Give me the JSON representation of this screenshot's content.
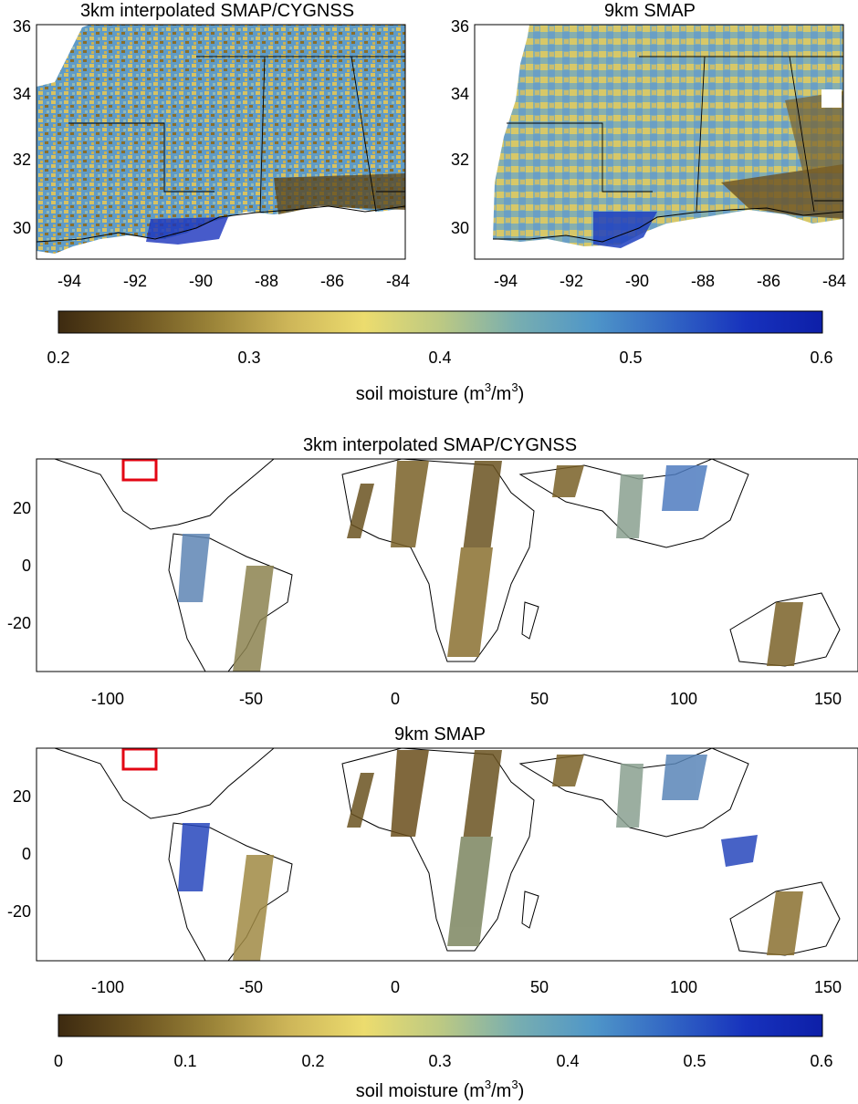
{
  "colors": {
    "colormap": [
      "#3d2a10",
      "#6b5320",
      "#9a8338",
      "#cdb558",
      "#ecdc6e",
      "#bcc983",
      "#78aeb0",
      "#4f96c8",
      "#3266c4",
      "#1732bd",
      "#0d1fa8"
    ],
    "land_bg": "#ffffff",
    "ocean": "#ffffff",
    "inset_box": "#e30613",
    "coast": "#000000"
  },
  "maps": {
    "regional_left": {
      "title": "3km interpolated SMAP/CYGNSS",
      "x_ticks": [
        "-94",
        "-92",
        "-90",
        "-88",
        "-86",
        "-84"
      ],
      "y_ticks": [
        "36",
        "34",
        "32",
        "30"
      ]
    },
    "regional_right": {
      "title": "9km SMAP",
      "x_ticks": [
        "-94",
        "-92",
        "-90",
        "-88",
        "-86",
        "-84"
      ],
      "y_ticks": [
        "36",
        "34",
        "32",
        "30"
      ]
    },
    "global_top": {
      "title": "3km interpolated SMAP/CYGNSS",
      "x_ticks": [
        "-100",
        "-50",
        "0",
        "50",
        "100",
        "150"
      ],
      "y_ticks": [
        "20",
        "0",
        "-20"
      ]
    },
    "global_bottom": {
      "title": "9km SMAP",
      "x_ticks": [
        "-100",
        "-50",
        "0",
        "50",
        "100",
        "150"
      ],
      "y_ticks": [
        "20",
        "0",
        "-20"
      ]
    }
  },
  "colorbars": {
    "top": {
      "ticks": [
        "0.2",
        "0.3",
        "0.4",
        "0.5",
        "0.6"
      ],
      "label_main": "soil moisture (m",
      "sup1": "3",
      "label_mid": "/m",
      "sup2": "3",
      "label_end": ")"
    },
    "bottom": {
      "ticks": [
        "0",
        "0.1",
        "0.2",
        "0.3",
        "0.4",
        "0.5",
        "0.6"
      ],
      "label_main": "soil moisture (m",
      "sup1": "3",
      "label_mid": "/m",
      "sup2": "3",
      "label_end": ")"
    }
  }
}
